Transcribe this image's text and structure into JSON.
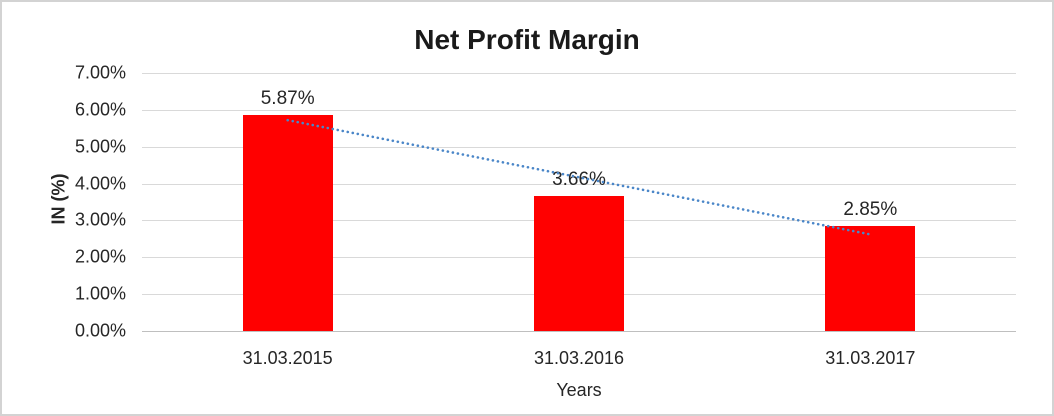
{
  "chart_data": {
    "type": "bar",
    "title": "Net Profit Margin",
    "xlabel": "Years",
    "ylabel": "IN (%)",
    "categories": [
      "31.03.2015",
      "31.03.2016",
      "31.03.2017"
    ],
    "values": [
      5.87,
      3.66,
      2.85
    ],
    "data_labels": [
      "5.87%",
      "3.66%",
      "2.85%"
    ],
    "ylim": [
      0,
      7
    ],
    "ytick_step": 1,
    "ytick_labels": [
      "0.00%",
      "1.00%",
      "2.00%",
      "3.00%",
      "4.00%",
      "5.00%",
      "6.00%",
      "7.00%"
    ],
    "grid": true,
    "legend": "none",
    "bar_color": "#ff0000",
    "gridline_color": "#d9d9d9",
    "axis_line_color": "#bfbfbf",
    "trendline": {
      "type": "linear",
      "style": "dotted",
      "color": "#4a86c8",
      "start_value": 5.72,
      "end_value": 2.62
    }
  }
}
